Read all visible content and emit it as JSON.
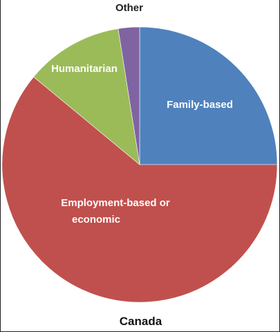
{
  "chart_data": {
    "type": "pie",
    "title": "Canada",
    "slices": [
      {
        "label": "Family-based",
        "value": 25.0,
        "color": "#4F81BD"
      },
      {
        "label": "Employment-based or economic",
        "value": 61.0,
        "color": "#C0504D"
      },
      {
        "label": "Humanitarian",
        "value": 11.5,
        "color": "#9BBB59"
      },
      {
        "label": "Other",
        "value": 2.5,
        "color": "#8064A2"
      }
    ],
    "start_angle_deg": 0,
    "direction": "clockwise",
    "legend": "none"
  }
}
